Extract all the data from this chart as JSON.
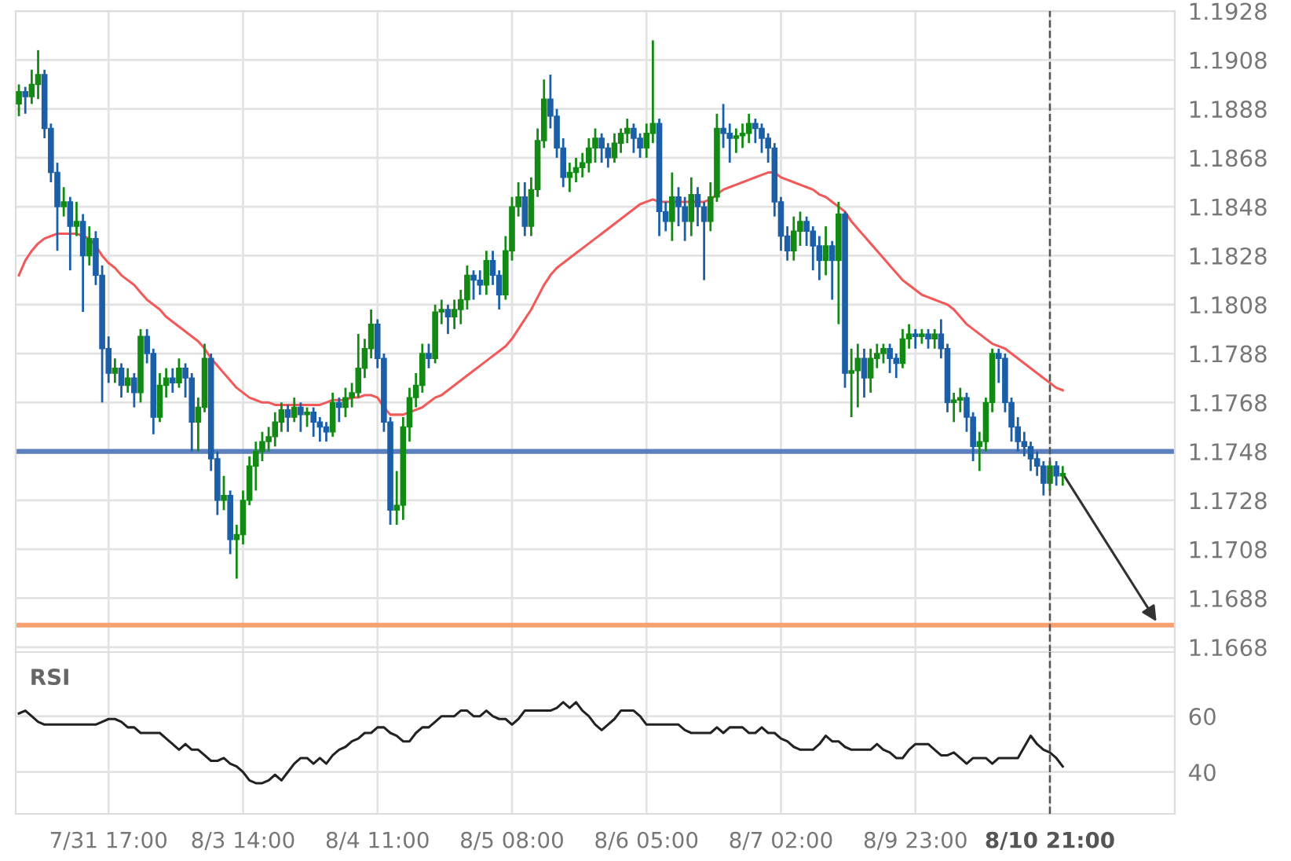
{
  "chart_data": [
    {
      "type": "candlestick",
      "categories": [
        null,
        null,
        null,
        null,
        null,
        null,
        null,
        null,
        null,
        null,
        null,
        null,
        null,
        null,
        "7/31 17:00",
        null,
        null,
        null,
        null,
        null,
        null,
        null,
        null,
        null,
        null,
        null,
        null,
        null,
        null,
        null,
        null,
        null,
        null,
        null,
        null,
        "8/3 14:00",
        null,
        null,
        null,
        null,
        null,
        null,
        null,
        null,
        null,
        null,
        null,
        null,
        null,
        null,
        null,
        null,
        null,
        null,
        null,
        null,
        "8/4 11:00",
        null,
        null,
        null,
        null,
        null,
        null,
        null,
        null,
        null,
        null,
        null,
        null,
        null,
        null,
        null,
        null,
        null,
        null,
        null,
        null,
        "8/5 08:00",
        null,
        null,
        null,
        null,
        null,
        null,
        null,
        null,
        null,
        null,
        null,
        null,
        null,
        null,
        null,
        null,
        null,
        null,
        null,
        null,
        "8/6 05:00",
        null,
        null,
        null,
        null,
        null,
        null,
        null,
        null,
        null,
        null,
        null,
        null,
        null,
        null,
        null,
        null,
        null,
        null,
        null,
        null,
        "8/7 02:00",
        null,
        null,
        null,
        null,
        null,
        null,
        null,
        null,
        null,
        null,
        null,
        null,
        null,
        null,
        null,
        null,
        null,
        null,
        null,
        null,
        "8/9 23:00",
        null,
        null,
        null,
        null,
        null,
        null,
        null,
        null,
        null,
        null,
        null,
        null,
        null,
        null,
        null,
        null,
        null,
        null,
        null,
        null,
        "8/10 21:00",
        null,
        null,
        null,
        null,
        null,
        null,
        null,
        null,
        null,
        null,
        null,
        null,
        null,
        null,
        null,
        null,
        null,
        null,
        null
      ],
      "ylim": [
        1.1666,
        1.1928
      ],
      "yticks": [
        1.1668,
        1.1688,
        1.1708,
        1.1728,
        1.1748,
        1.1768,
        1.1788,
        1.1808,
        1.1828,
        1.1848,
        1.1868,
        1.1888,
        1.1908,
        1.1928
      ],
      "grid": true,
      "tick_labels": "y",
      "ref_lines": [
        {
          "axis": "y",
          "value": 1.1748,
          "color": "#5b80bd"
        },
        {
          "axis": "y",
          "value": 1.1677,
          "color": "#f7a072"
        },
        {
          "axis": "x",
          "value": "8/10 21:00",
          "color": "#555555",
          "line_style": "dashed"
        }
      ],
      "series": [
        {
          "type": "candlestick",
          "ohlc": [
            [
              1.189,
              1.1898,
              1.1885,
              1.1895
            ],
            [
              1.1895,
              1.1897,
              1.1886,
              1.1893
            ],
            [
              1.1893,
              1.1904,
              1.189,
              1.1898
            ],
            [
              1.1898,
              1.1912,
              1.1892,
              1.1902
            ],
            [
              1.1902,
              1.1904,
              1.1876,
              1.188
            ],
            [
              1.188,
              1.1882,
              1.1858,
              1.1862
            ],
            [
              1.1862,
              1.1866,
              1.183,
              1.1848
            ],
            [
              1.1848,
              1.1856,
              1.1844,
              1.185
            ],
            [
              1.185,
              1.1852,
              1.1822,
              1.184
            ],
            [
              1.184,
              1.185,
              1.1836,
              1.1842
            ],
            [
              1.1842,
              1.1845,
              1.1805,
              1.1828
            ],
            [
              1.1828,
              1.184,
              1.1824,
              1.1835
            ],
            [
              1.1835,
              1.1838,
              1.1816,
              1.182
            ],
            [
              1.182,
              1.1824,
              1.1768,
              1.179
            ],
            [
              1.179,
              1.1795,
              1.1776,
              1.178
            ],
            [
              1.178,
              1.1786,
              1.1776,
              1.1782
            ],
            [
              1.1782,
              1.1784,
              1.177,
              1.1775
            ],
            [
              1.1775,
              1.1782,
              1.1772,
              1.1778
            ],
            [
              1.1778,
              1.178,
              1.1766,
              1.1772
            ],
            [
              1.1772,
              1.1798,
              1.1768,
              1.1795
            ],
            [
              1.1795,
              1.1798,
              1.1784,
              1.1788
            ],
            [
              1.1788,
              1.179,
              1.1755,
              1.1762
            ],
            [
              1.1762,
              1.178,
              1.176,
              1.1775
            ],
            [
              1.1775,
              1.1782,
              1.177,
              1.1778
            ],
            [
              1.1778,
              1.1782,
              1.1772,
              1.1776
            ],
            [
              1.1776,
              1.1786,
              1.1774,
              1.1782
            ],
            [
              1.1782,
              1.1784,
              1.177,
              1.1778
            ],
            [
              1.1778,
              1.178,
              1.1748,
              1.176
            ],
            [
              1.176,
              1.177,
              1.1748,
              1.1766
            ],
            [
              1.1766,
              1.1792,
              1.1764,
              1.1786
            ],
            [
              1.1786,
              1.1788,
              1.174,
              1.1745
            ],
            [
              1.1745,
              1.1748,
              1.1722,
              1.1728
            ],
            [
              1.1728,
              1.1738,
              1.1724,
              1.173
            ],
            [
              1.173,
              1.1732,
              1.1706,
              1.1712
            ],
            [
              1.1712,
              1.1718,
              1.1696,
              1.1714
            ],
            [
              1.1714,
              1.1732,
              1.171,
              1.1728
            ],
            [
              1.1728,
              1.1746,
              1.1726,
              1.1742
            ],
            [
              1.1742,
              1.1752,
              1.1732,
              1.1748
            ],
            [
              1.1748,
              1.1756,
              1.1744,
              1.1752
            ],
            [
              1.1752,
              1.1758,
              1.1748,
              1.1754
            ],
            [
              1.1754,
              1.1764,
              1.175,
              1.176
            ],
            [
              1.176,
              1.1768,
              1.1756,
              1.1765
            ],
            [
              1.1765,
              1.1767,
              1.1756,
              1.1762
            ],
            [
              1.1762,
              1.177,
              1.176,
              1.1766
            ],
            [
              1.1766,
              1.1768,
              1.1756,
              1.1763
            ],
            [
              1.1763,
              1.1766,
              1.1758,
              1.1764
            ],
            [
              1.1764,
              1.1766,
              1.1754,
              1.176
            ],
            [
              1.176,
              1.1762,
              1.1752,
              1.1758
            ],
            [
              1.1758,
              1.176,
              1.1752,
              1.1756
            ],
            [
              1.1756,
              1.1772,
              1.1754,
              1.1768
            ],
            [
              1.1768,
              1.177,
              1.176,
              1.1766
            ],
            [
              1.1766,
              1.1774,
              1.1762,
              1.177
            ],
            [
              1.177,
              1.1776,
              1.1766,
              1.1772
            ],
            [
              1.1772,
              1.1796,
              1.177,
              1.1782
            ],
            [
              1.1782,
              1.1794,
              1.1778,
              1.179
            ],
            [
              1.179,
              1.1806,
              1.1786,
              1.18
            ],
            [
              1.18,
              1.1802,
              1.1782,
              1.1786
            ],
            [
              1.1786,
              1.1788,
              1.1756,
              1.176
            ],
            [
              1.176,
              1.1762,
              1.1718,
              1.1724
            ],
            [
              1.1724,
              1.174,
              1.1718,
              1.1726
            ],
            [
              1.1726,
              1.1762,
              1.172,
              1.1758
            ],
            [
              1.1758,
              1.1774,
              1.1752,
              1.177
            ],
            [
              1.177,
              1.178,
              1.1766,
              1.1775
            ],
            [
              1.1775,
              1.1792,
              1.1772,
              1.1788
            ],
            [
              1.1788,
              1.1792,
              1.1782,
              1.1786
            ],
            [
              1.1786,
              1.1808,
              1.1784,
              1.1805
            ],
            [
              1.1805,
              1.181,
              1.18,
              1.1806
            ],
            [
              1.1806,
              1.1808,
              1.1796,
              1.1803
            ],
            [
              1.1803,
              1.181,
              1.1798,
              1.1806
            ],
            [
              1.1806,
              1.1814,
              1.18,
              1.181
            ],
            [
              1.181,
              1.1824,
              1.1806,
              1.182
            ],
            [
              1.182,
              1.1822,
              1.181,
              1.1818
            ],
            [
              1.1818,
              1.1822,
              1.1812,
              1.1816
            ],
            [
              1.1816,
              1.183,
              1.1812,
              1.1826
            ],
            [
              1.1826,
              1.183,
              1.1816,
              1.182
            ],
            [
              1.182,
              1.1822,
              1.1806,
              1.1812
            ],
            [
              1.1812,
              1.1836,
              1.181,
              1.183
            ],
            [
              1.183,
              1.1852,
              1.1826,
              1.1848
            ],
            [
              1.1848,
              1.1858,
              1.1844,
              1.1852
            ],
            [
              1.1852,
              1.1858,
              1.1836,
              1.184
            ],
            [
              1.184,
              1.186,
              1.1836,
              1.1855
            ],
            [
              1.1855,
              1.188,
              1.1852,
              1.1875
            ],
            [
              1.1875,
              1.19,
              1.1872,
              1.1892
            ],
            [
              1.1892,
              1.1902,
              1.188,
              1.1885
            ],
            [
              1.1885,
              1.1888,
              1.1868,
              1.1872
            ],
            [
              1.1872,
              1.1876,
              1.1856,
              1.186
            ],
            [
              1.186,
              1.1866,
              1.1854,
              1.1862
            ],
            [
              1.1862,
              1.1868,
              1.1858,
              1.1864
            ],
            [
              1.1864,
              1.187,
              1.186,
              1.1866
            ],
            [
              1.1866,
              1.1876,
              1.1862,
              1.1872
            ],
            [
              1.1872,
              1.188,
              1.1866,
              1.1876
            ],
            [
              1.1876,
              1.1878,
              1.1866,
              1.1872
            ],
            [
              1.1872,
              1.1874,
              1.1864,
              1.1868
            ],
            [
              1.1868,
              1.1878,
              1.1866,
              1.1874
            ],
            [
              1.1874,
              1.188,
              1.187,
              1.1878
            ],
            [
              1.1878,
              1.1884,
              1.1874,
              1.188
            ],
            [
              1.188,
              1.1882,
              1.187,
              1.1876
            ],
            [
              1.1876,
              1.1878,
              1.1868,
              1.1872
            ],
            [
              1.1872,
              1.1882,
              1.1868,
              1.1878
            ],
            [
              1.1878,
              1.1916,
              1.1874,
              1.1882
            ],
            [
              1.1882,
              1.1884,
              1.1836,
              1.1846
            ],
            [
              1.1846,
              1.185,
              1.1838,
              1.1842
            ],
            [
              1.1842,
              1.1862,
              1.1834,
              1.1852
            ],
            [
              1.1852,
              1.1856,
              1.184,
              1.1848
            ],
            [
              1.1848,
              1.1852,
              1.1834,
              1.1842
            ],
            [
              1.1842,
              1.186,
              1.1836,
              1.1853
            ],
            [
              1.1853,
              1.1856,
              1.184,
              1.1848
            ],
            [
              1.1848,
              1.185,
              1.1818,
              1.1842
            ],
            [
              1.1842,
              1.1858,
              1.1838,
              1.1852
            ],
            [
              1.1852,
              1.1886,
              1.185,
              1.188
            ],
            [
              1.188,
              1.189,
              1.1872,
              1.1878
            ],
            [
              1.1878,
              1.1882,
              1.1866,
              1.1876
            ],
            [
              1.1876,
              1.188,
              1.187,
              1.1877
            ],
            [
              1.1877,
              1.1882,
              1.1872,
              1.1878
            ],
            [
              1.1878,
              1.1886,
              1.1874,
              1.1882
            ],
            [
              1.1882,
              1.1884,
              1.1874,
              1.188
            ],
            [
              1.188,
              1.1882,
              1.187,
              1.1876
            ],
            [
              1.1876,
              1.1878,
              1.1866,
              1.1872
            ],
            [
              1.1872,
              1.1874,
              1.1844,
              1.185
            ],
            [
              1.185,
              1.1852,
              1.183,
              1.1836
            ],
            [
              1.1836,
              1.184,
              1.1826,
              1.183
            ],
            [
              1.183,
              1.1844,
              1.1826,
              1.1838
            ],
            [
              1.1838,
              1.1846,
              1.1832,
              1.1842
            ],
            [
              1.1842,
              1.1844,
              1.1832,
              1.1838
            ],
            [
              1.1838,
              1.184,
              1.1822,
              1.1832
            ],
            [
              1.1832,
              1.1836,
              1.1818,
              1.1826
            ],
            [
              1.1826,
              1.184,
              1.182,
              1.1832
            ],
            [
              1.1832,
              1.1834,
              1.181,
              1.1826
            ],
            [
              1.1826,
              1.185,
              1.18,
              1.1845
            ],
            [
              1.1845,
              1.1846,
              1.1774,
              1.178
            ],
            [
              1.178,
              1.179,
              1.1762,
              1.1781
            ],
            [
              1.1781,
              1.1792,
              1.1766,
              1.1786
            ],
            [
              1.1786,
              1.179,
              1.177,
              1.1778
            ],
            [
              1.1778,
              1.179,
              1.1772,
              1.1786
            ],
            [
              1.1786,
              1.1792,
              1.1782,
              1.1788
            ],
            [
              1.1788,
              1.1792,
              1.1784,
              1.179
            ],
            [
              1.179,
              1.1792,
              1.178,
              1.1786
            ],
            [
              1.1786,
              1.1788,
              1.1778,
              1.1784
            ],
            [
              1.1784,
              1.1798,
              1.1782,
              1.1794
            ],
            [
              1.1794,
              1.18,
              1.179,
              1.1796
            ],
            [
              1.1796,
              1.1798,
              1.179,
              1.1795
            ],
            [
              1.1795,
              1.1798,
              1.1792,
              1.1796
            ],
            [
              1.1796,
              1.1798,
              1.179,
              1.1794
            ],
            [
              1.1794,
              1.1798,
              1.179,
              1.1796
            ],
            [
              1.1796,
              1.1802,
              1.1786,
              1.179
            ],
            [
              1.179,
              1.1792,
              1.1764,
              1.1768
            ],
            [
              1.1768,
              1.1772,
              1.176,
              1.1769
            ],
            [
              1.1769,
              1.1774,
              1.1764,
              1.177
            ],
            [
              1.177,
              1.1772,
              1.1756,
              1.1762
            ],
            [
              1.1762,
              1.1764,
              1.1744,
              1.175
            ],
            [
              1.175,
              1.1756,
              1.174,
              1.1752
            ],
            [
              1.1752,
              1.177,
              1.1748,
              1.1768
            ],
            [
              1.1768,
              1.179,
              1.1764,
              1.1788
            ],
            [
              1.1788,
              1.179,
              1.1776,
              1.1786
            ],
            [
              1.1786,
              1.1788,
              1.1764,
              1.1768
            ],
            [
              1.1768,
              1.177,
              1.1752,
              1.1758
            ],
            [
              1.1758,
              1.1762,
              1.1748,
              1.1752
            ],
            [
              1.1752,
              1.1756,
              1.1746,
              1.175
            ],
            [
              1.175,
              1.1752,
              1.174,
              1.1745
            ],
            [
              1.1745,
              1.1748,
              1.1738,
              1.1742
            ],
            [
              1.1742,
              1.1744,
              1.173,
              1.1735
            ],
            [
              1.1735,
              1.1744,
              1.1732,
              1.1742
            ],
            [
              1.1742,
              1.1744,
              1.1734,
              1.1738
            ],
            [
              1.1738,
              1.1742,
              1.1734,
              1.1739
            ],
            null,
            null,
            null,
            null,
            null,
            null,
            null,
            null,
            null,
            null,
            null,
            null,
            null,
            null,
            null,
            null,
            null
          ],
          "colors": [
            "#138a13",
            "#1b5fa8",
            "#138a13",
            "#138a13",
            "#1b5fa8",
            "#1b5fa8",
            "#1b5fa8",
            "#138a13",
            "#1b5fa8",
            "#138a13",
            "#1b5fa8",
            "#138a13",
            "#1b5fa8",
            "#1b5fa8",
            "#1b5fa8",
            "#138a13",
            "#1b5fa8",
            "#138a13",
            "#1b5fa8",
            "#138a13",
            "#1b5fa8",
            "#1b5fa8",
            "#138a13",
            "#138a13",
            "#1b5fa8",
            "#138a13",
            "#1b5fa8",
            "#1b5fa8",
            "#138a13",
            "#138a13",
            "#1b5fa8",
            "#1b5fa8",
            "#138a13",
            "#1b5fa8",
            "#138a13",
            "#138a13",
            "#138a13",
            "#138a13",
            "#138a13",
            "#138a13",
            "#138a13",
            "#138a13",
            "#1b5fa8",
            "#138a13",
            "#1b5fa8",
            "#138a13",
            "#1b5fa8",
            "#1b5fa8",
            "#1b5fa8",
            "#138a13",
            "#1b5fa8",
            "#138a13",
            "#138a13",
            "#138a13",
            "#138a13",
            "#138a13",
            "#1b5fa8",
            "#1b5fa8",
            "#1b5fa8",
            "#138a13",
            "#138a13",
            "#138a13",
            "#138a13",
            "#138a13",
            "#1b5fa8",
            "#138a13",
            "#138a13",
            "#1b5fa8",
            "#138a13",
            "#138a13",
            "#138a13",
            "#1b5fa8",
            "#1b5fa8",
            "#138a13",
            "#1b5fa8",
            "#1b5fa8",
            "#138a13",
            "#138a13",
            "#138a13",
            "#1b5fa8",
            "#138a13",
            "#138a13",
            "#138a13",
            "#1b5fa8",
            "#1b5fa8",
            "#1b5fa8",
            "#138a13",
            "#138a13",
            "#138a13",
            "#138a13",
            "#138a13",
            "#1b5fa8",
            "#1b5fa8",
            "#138a13",
            "#138a13",
            "#138a13",
            "#1b5fa8",
            "#1b5fa8",
            "#138a13",
            "#138a13",
            "#1b5fa8",
            "#1b5fa8",
            "#138a13",
            "#1b5fa8",
            "#1b5fa8",
            "#138a13",
            "#1b5fa8",
            "#1b5fa8",
            "#138a13",
            "#138a13",
            "#1b5fa8",
            "#1b5fa8",
            "#138a13",
            "#138a13",
            "#138a13",
            "#1b5fa8",
            "#1b5fa8",
            "#1b5fa8",
            "#1b5fa8",
            "#1b5fa8",
            "#1b5fa8",
            "#138a13",
            "#138a13",
            "#1b5fa8",
            "#1b5fa8",
            "#1b5fa8",
            "#138a13",
            "#1b5fa8",
            "#138a13",
            "#1b5fa8",
            "#138a13",
            "#138a13",
            "#1b5fa8",
            "#138a13",
            "#138a13",
            "#138a13",
            "#1b5fa8",
            "#1b5fa8",
            "#138a13",
            "#138a13",
            "#1b5fa8",
            "#138a13",
            "#1b5fa8",
            "#138a13",
            "#1b5fa8",
            "#1b5fa8",
            "#138a13",
            "#138a13",
            "#1b5fa8",
            "#1b5fa8",
            "#138a13",
            "#138a13",
            "#138a13",
            "#1b5fa8",
            "#1b5fa8",
            "#1b5fa8",
            "#1b5fa8",
            "#1b5fa8",
            "#1b5fa8",
            "#1b5fa8",
            "#1b5fa8",
            "#138a13",
            "#1b5fa8",
            "#138a13",
            null,
            null,
            null,
            null,
            null,
            null,
            null,
            null,
            null,
            null,
            null,
            null,
            null,
            null,
            null,
            null,
            null
          ]
        },
        {
          "type": "line",
          "color": "#f25a5a",
          "values": [
            1.182,
            1.1826,
            1.183,
            1.1833,
            1.1835,
            1.1836,
            1.1837,
            1.1837,
            1.1837,
            1.1837,
            1.1836,
            1.1835,
            1.1832,
            1.1828,
            1.1825,
            1.1823,
            1.182,
            1.1818,
            1.1816,
            1.1813,
            1.181,
            1.1808,
            1.1806,
            1.1803,
            1.1801,
            1.1799,
            1.1797,
            1.1795,
            1.1793,
            1.179,
            1.1786,
            1.1783,
            1.178,
            1.1777,
            1.1774,
            1.1772,
            1.177,
            1.1769,
            1.1768,
            1.1768,
            1.1767,
            1.1767,
            1.1767,
            1.1767,
            1.1767,
            1.1767,
            1.1767,
            1.1767,
            1.1768,
            1.1769,
            1.1769,
            1.1769,
            1.177,
            1.177,
            1.1771,
            1.1771,
            1.177,
            1.1766,
            1.1763,
            1.1763,
            1.1763,
            1.1764,
            1.1765,
            1.1766,
            1.1768,
            1.177,
            1.1771,
            1.1773,
            1.1775,
            1.1777,
            1.1779,
            1.1781,
            1.1783,
            1.1785,
            1.1787,
            1.1789,
            1.1791,
            1.1794,
            1.1798,
            1.1802,
            1.1806,
            1.1811,
            1.1816,
            1.182,
            1.1823,
            1.1825,
            1.1827,
            1.1829,
            1.1831,
            1.1833,
            1.1835,
            1.1837,
            1.1839,
            1.1841,
            1.1843,
            1.1845,
            1.1847,
            1.1849,
            1.185,
            1.1851,
            1.185,
            1.185,
            1.185,
            1.185,
            1.185,
            1.185,
            1.185,
            1.185,
            1.1851,
            1.1853,
            1.1855,
            1.1856,
            1.1857,
            1.1858,
            1.1859,
            1.186,
            1.1861,
            1.1862,
            1.1862,
            1.186,
            1.1859,
            1.1858,
            1.1857,
            1.1856,
            1.1855,
            1.1853,
            1.1852,
            1.185,
            1.1848,
            1.1846,
            1.1842,
            1.1839,
            1.1836,
            1.1833,
            1.183,
            1.1827,
            1.1824,
            1.1821,
            1.1818,
            1.1816,
            1.1814,
            1.1812,
            1.1811,
            1.181,
            1.1809,
            1.1808,
            1.1806,
            1.1803,
            1.18,
            1.1798,
            1.1796,
            1.1794,
            1.1792,
            1.1791,
            1.179,
            1.1788,
            1.1786,
            1.1784,
            1.1782,
            1.178,
            1.1778,
            1.1776,
            1.1774,
            1.1773,
            null,
            null,
            null,
            null,
            null,
            null,
            null,
            null,
            null,
            null,
            null,
            null,
            null,
            null,
            null,
            null,
            null
          ]
        }
      ]
    },
    {
      "type": "line",
      "title": "RSI",
      "categories": [
        null,
        null,
        null,
        null,
        null,
        null,
        null,
        null,
        null,
        null,
        null,
        null,
        null,
        null,
        "7/31 17:00",
        null,
        null,
        null,
        null,
        null,
        null,
        null,
        null,
        null,
        null,
        null,
        null,
        null,
        null,
        null,
        null,
        null,
        null,
        null,
        null,
        "8/3 14:00",
        null,
        null,
        null,
        null,
        null,
        null,
        null,
        null,
        null,
        null,
        null,
        null,
        null,
        null,
        null,
        null,
        null,
        null,
        null,
        null,
        "8/4 11:00",
        null,
        null,
        null,
        null,
        null,
        null,
        null,
        null,
        null,
        null,
        null,
        null,
        null,
        null,
        null,
        null,
        null,
        null,
        null,
        null,
        "8/5 08:00",
        null,
        null,
        null,
        null,
        null,
        null,
        null,
        null,
        null,
        null,
        null,
        null,
        null,
        null,
        null,
        null,
        null,
        null,
        null,
        null,
        "8/6 05:00",
        null,
        null,
        null,
        null,
        null,
        null,
        null,
        null,
        null,
        null,
        null,
        null,
        null,
        null,
        null,
        null,
        null,
        null,
        null,
        null,
        "8/7 02:00",
        null,
        null,
        null,
        null,
        null,
        null,
        null,
        null,
        null,
        null,
        null,
        null,
        null,
        null,
        null,
        null,
        null,
        null,
        null,
        null,
        "8/9 23:00",
        null,
        null,
        null,
        null,
        null,
        null,
        null,
        null,
        null,
        null,
        null,
        null,
        null,
        null,
        null,
        null,
        null,
        null,
        null,
        null,
        "8/10 21:00",
        null,
        null,
        null,
        null,
        null,
        null,
        null,
        null,
        null,
        null,
        null,
        null,
        null,
        null,
        null,
        null,
        null,
        null,
        null
      ],
      "ylim": [
        25,
        83
      ],
      "yticks": [
        40,
        60
      ],
      "grid": true,
      "ref_lines": [
        {
          "axis": "x",
          "value": "8/10 21:00",
          "color": "#555555",
          "line_style": "dashed"
        }
      ],
      "series": [
        {
          "color": "#222222",
          "values": [
            61,
            62,
            60,
            58,
            57,
            57,
            57,
            57,
            57,
            57,
            57,
            57,
            57,
            58,
            59,
            59,
            58,
            56,
            56,
            54,
            54,
            54,
            54,
            52,
            50,
            48,
            50,
            48,
            48,
            46,
            44,
            44,
            45,
            43,
            42,
            40,
            37,
            36,
            36,
            37,
            39,
            37,
            40,
            43,
            45,
            45,
            43,
            45,
            43,
            46,
            48,
            49,
            51,
            52,
            54,
            54,
            56,
            56,
            54,
            53,
            51,
            51,
            54,
            56,
            56,
            58,
            60,
            60,
            60,
            62,
            62,
            60,
            60,
            62,
            60,
            59,
            59,
            57,
            59,
            62,
            62,
            62,
            62,
            62,
            63,
            65,
            63,
            65,
            62,
            60,
            57,
            55,
            57,
            59,
            62,
            62,
            62,
            60,
            57,
            57,
            57,
            57,
            57,
            57,
            55,
            54,
            54,
            54,
            54,
            56,
            54,
            56,
            56,
            56,
            54,
            54,
            56,
            54,
            54,
            52,
            51,
            49,
            48,
            48,
            48,
            50,
            53,
            51,
            51,
            49,
            48,
            48,
            48,
            48,
            50,
            48,
            47,
            45,
            45,
            48,
            50,
            50,
            50,
            48,
            46,
            46,
            47,
            45,
            43,
            45,
            45,
            45,
            43,
            45,
            45,
            45,
            45,
            49,
            53,
            50,
            48,
            47,
            45,
            42,
            null,
            null,
            null,
            null,
            null,
            null,
            null,
            null,
            null,
            null,
            null,
            null,
            null,
            null,
            null,
            null,
            null
          ]
        }
      ]
    }
  ]
}
